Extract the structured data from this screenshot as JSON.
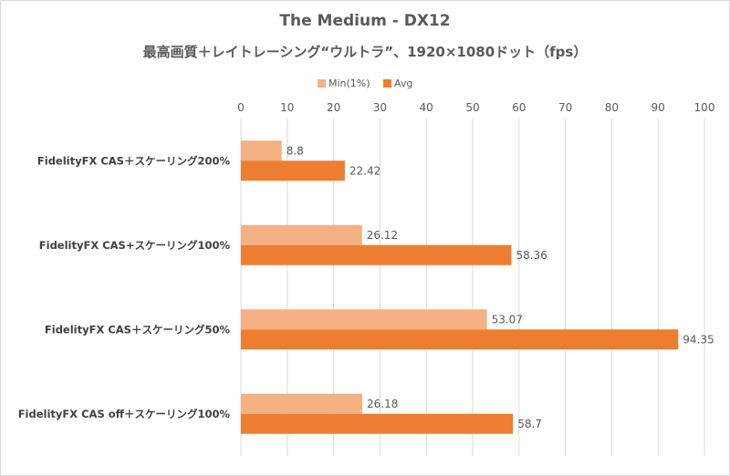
{
  "chart_data": {
    "type": "bar",
    "orientation": "horizontal",
    "title": "The Medium - DX12",
    "subtitle": "最高画質＋レイトレーシング“ウルトラ”、1920×1080ドット（fps）",
    "categories": [
      "FidelityFX CAS＋スケーリング200%",
      "FidelityFX CAS+スケーリング100%",
      "FidelityFX CAS＋スケーリング50%",
      "FidelityFX CAS off＋スケーリング100%"
    ],
    "series": [
      {
        "name": "Min(1%)",
        "color": "#f4b183",
        "values": [
          8.8,
          26.12,
          53.07,
          26.18
        ]
      },
      {
        "name": "Avg",
        "color": "#ed7d31",
        "values": [
          22.42,
          58.36,
          94.35,
          58.7
        ]
      }
    ],
    "data_labels": [
      [
        "8.8",
        "26.12",
        "53.07",
        "26.18"
      ],
      [
        "22.42",
        "58.36",
        "94.35",
        "58.7"
      ]
    ],
    "xlim": [
      0,
      100
    ],
    "xticks": [
      "0",
      "10",
      "20",
      "30",
      "40",
      "50",
      "60",
      "70",
      "80",
      "90",
      "100"
    ],
    "grid": true,
    "legend_position": "top",
    "xaxis_position": "top"
  }
}
